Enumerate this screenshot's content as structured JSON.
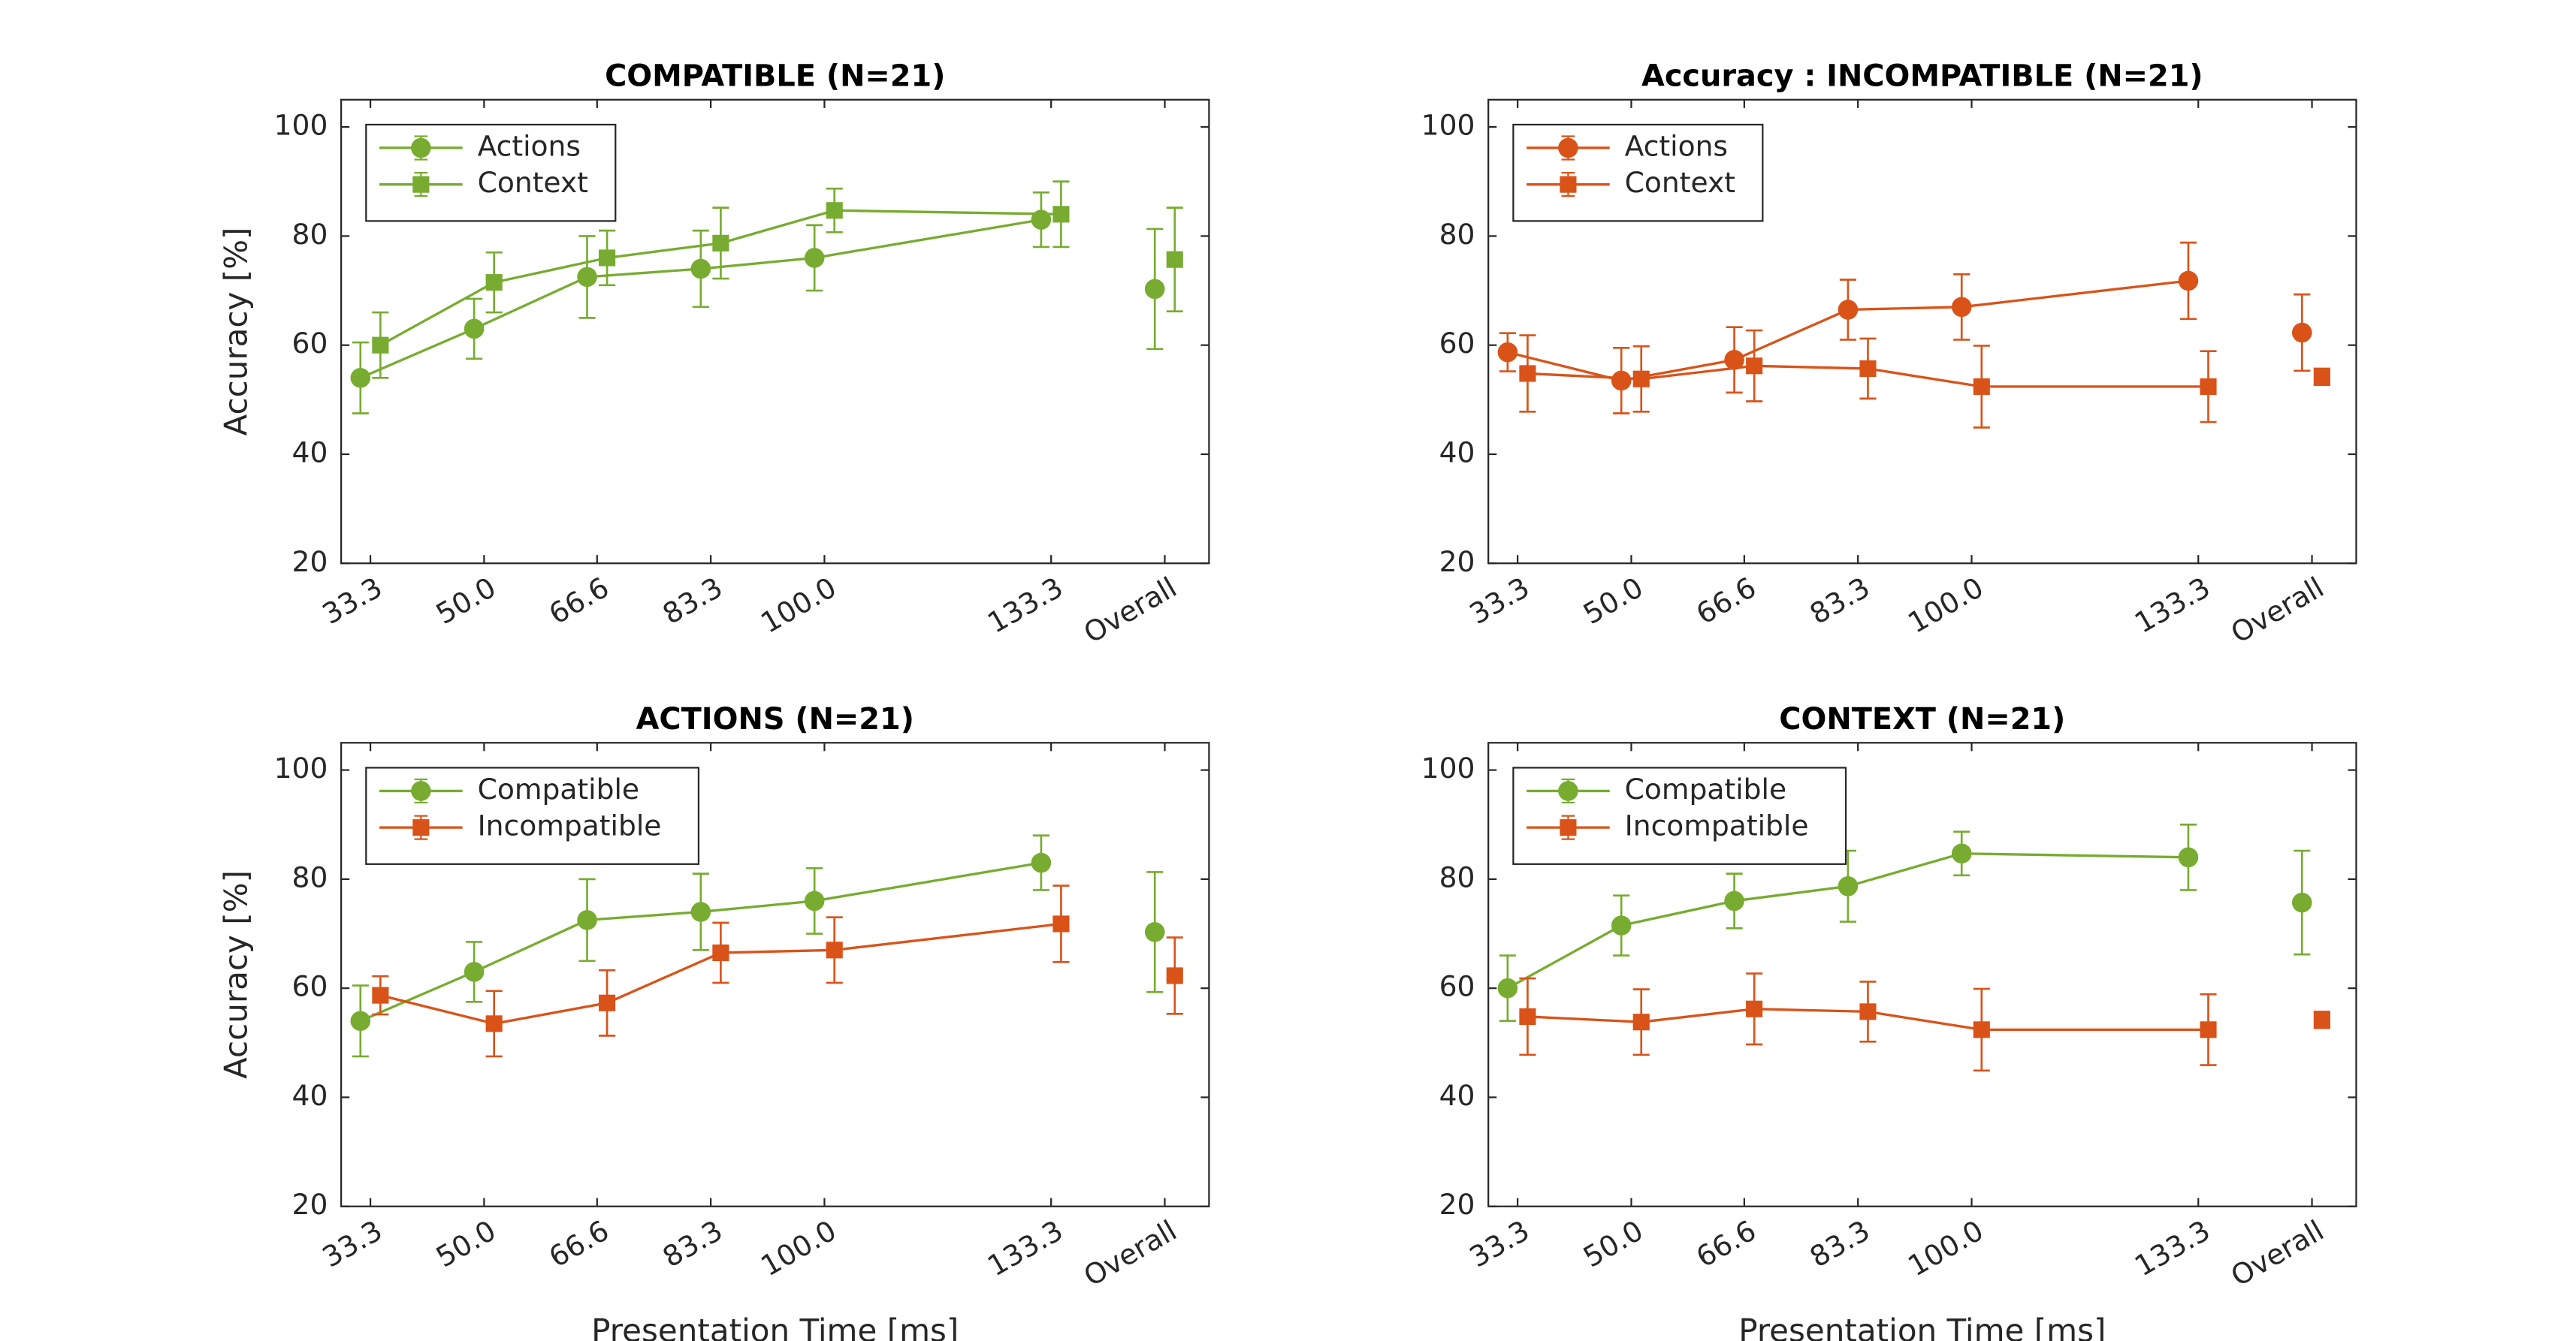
{
  "chart_data": [
    {
      "type": "line",
      "title": "COMPATIBLE (N=21)",
      "ylabel": "Accuracy [%]",
      "x": [
        33.3,
        50,
        66.6,
        83.3,
        100,
        133.3
      ],
      "xticks": [
        {
          "value": 33.3,
          "label": "33.3"
        },
        {
          "value": 50,
          "label": "50.0"
        },
        {
          "value": 66.6,
          "label": "66.6"
        },
        {
          "value": 83.3,
          "label": "83.3"
        },
        {
          "value": 100,
          "label": "100.0"
        },
        {
          "value": 133.3,
          "label": "133.3"
        },
        {
          "value": 150,
          "label": "Overall"
        }
      ],
      "xlim": [
        29,
        156.5
      ],
      "ylim": [
        20,
        105
      ],
      "yticks": [
        20,
        40,
        60,
        80,
        100
      ],
      "legend": "upper left",
      "series": [
        {
          "name": "Actions",
          "color": "#77ac30",
          "marker": "circle",
          "values": [
            54,
            63,
            72.5,
            74,
            76,
            83
          ],
          "errors": [
            6.5,
            5.5,
            7.5,
            7,
            6,
            5
          ],
          "overall": 70.3,
          "overall_error": 11
        },
        {
          "name": "Context",
          "color": "#77ac30",
          "marker": "square",
          "values": [
            60,
            71.5,
            76,
            78.7,
            84.7,
            84
          ],
          "errors": [
            6,
            5.5,
            5,
            6.5,
            4,
            6
          ],
          "overall": 75.7,
          "overall_error": 9.5
        }
      ]
    },
    {
      "type": "line",
      "title": "Accuracy : INCOMPATIBLE (N=21)",
      "x": [
        33.3,
        50,
        66.6,
        83.3,
        100,
        133.3
      ],
      "xticks": [
        {
          "value": 33.3,
          "label": "33.3"
        },
        {
          "value": 50,
          "label": "50.0"
        },
        {
          "value": 66.6,
          "label": "66.6"
        },
        {
          "value": 83.3,
          "label": "83.3"
        },
        {
          "value": 100,
          "label": "100.0"
        },
        {
          "value": 133.3,
          "label": "133.3"
        },
        {
          "value": 150,
          "label": "Overall"
        }
      ],
      "xlim": [
        29,
        156.5
      ],
      "ylim": [
        20,
        105
      ],
      "yticks": [
        20,
        40,
        60,
        80,
        100
      ],
      "legend": "upper left",
      "series": [
        {
          "name": "Actions",
          "color": "#d95319",
          "marker": "circle",
          "values": [
            58.7,
            53.5,
            57.3,
            66.5,
            67,
            71.8
          ],
          "errors": [
            3.5,
            6,
            6,
            5.5,
            6,
            7
          ],
          "overall": 62.3,
          "overall_error": 7
        },
        {
          "name": "Context",
          "color": "#d95319",
          "marker": "square",
          "values": [
            54.8,
            53.8,
            56.2,
            55.7,
            52.4,
            52.4
          ],
          "errors": [
            7,
            6,
            6.5,
            5.5,
            7.5,
            6.5
          ],
          "overall": 54.2,
          "overall_error": 1.5
        }
      ]
    },
    {
      "type": "line",
      "title": "ACTIONS (N=21)",
      "ylabel": "Accuracy [%]",
      "xlabel": "Presentation Time [ms]",
      "x": [
        33.3,
        50,
        66.6,
        83.3,
        100,
        133.3
      ],
      "xticks": [
        {
          "value": 33.3,
          "label": "33.3"
        },
        {
          "value": 50,
          "label": "50.0"
        },
        {
          "value": 66.6,
          "label": "66.6"
        },
        {
          "value": 83.3,
          "label": "83.3"
        },
        {
          "value": 100,
          "label": "100.0"
        },
        {
          "value": 133.3,
          "label": "133.3"
        },
        {
          "value": 150,
          "label": "Overall"
        }
      ],
      "xlim": [
        29,
        156.5
      ],
      "ylim": [
        20,
        105
      ],
      "yticks": [
        20,
        40,
        60,
        80,
        100
      ],
      "legend": "upper left",
      "series": [
        {
          "name": "Compatible",
          "color": "#77ac30",
          "marker": "circle",
          "values": [
            54,
            63,
            72.5,
            74,
            76,
            83
          ],
          "errors": [
            6.5,
            5.5,
            7.5,
            7,
            6,
            5
          ],
          "overall": 70.3,
          "overall_error": 11
        },
        {
          "name": "Incompatible",
          "color": "#d95319",
          "marker": "square",
          "values": [
            58.7,
            53.5,
            57.3,
            66.5,
            67,
            71.8
          ],
          "errors": [
            3.5,
            6,
            6,
            5.5,
            6,
            7
          ],
          "overall": 62.3,
          "overall_error": 7
        }
      ]
    },
    {
      "type": "line",
      "title": "CONTEXT (N=21)",
      "xlabel": "Presentation Time [ms]",
      "x": [
        33.3,
        50,
        66.6,
        83.3,
        100,
        133.3
      ],
      "xticks": [
        {
          "value": 33.3,
          "label": "33.3"
        },
        {
          "value": 50,
          "label": "50.0"
        },
        {
          "value": 66.6,
          "label": "66.6"
        },
        {
          "value": 83.3,
          "label": "83.3"
        },
        {
          "value": 100,
          "label": "100.0"
        },
        {
          "value": 133.3,
          "label": "133.3"
        },
        {
          "value": 150,
          "label": "Overall"
        }
      ],
      "xlim": [
        29,
        156.5
      ],
      "ylim": [
        20,
        105
      ],
      "yticks": [
        20,
        40,
        60,
        80,
        100
      ],
      "legend": "upper left",
      "series": [
        {
          "name": "Compatible",
          "color": "#77ac30",
          "marker": "circle",
          "values": [
            60,
            71.5,
            76,
            78.7,
            84.7,
            84
          ],
          "errors": [
            6,
            5.5,
            5,
            6.5,
            4,
            6
          ],
          "overall": 75.7,
          "overall_error": 9.5
        },
        {
          "name": "Incompatible",
          "color": "#d95319",
          "marker": "square",
          "values": [
            54.8,
            53.8,
            56.2,
            55.7,
            52.4,
            52.4
          ],
          "errors": [
            7,
            6,
            6.5,
            5.5,
            7.5,
            6.5
          ],
          "overall": 54.2,
          "overall_error": 1.5
        }
      ]
    }
  ]
}
